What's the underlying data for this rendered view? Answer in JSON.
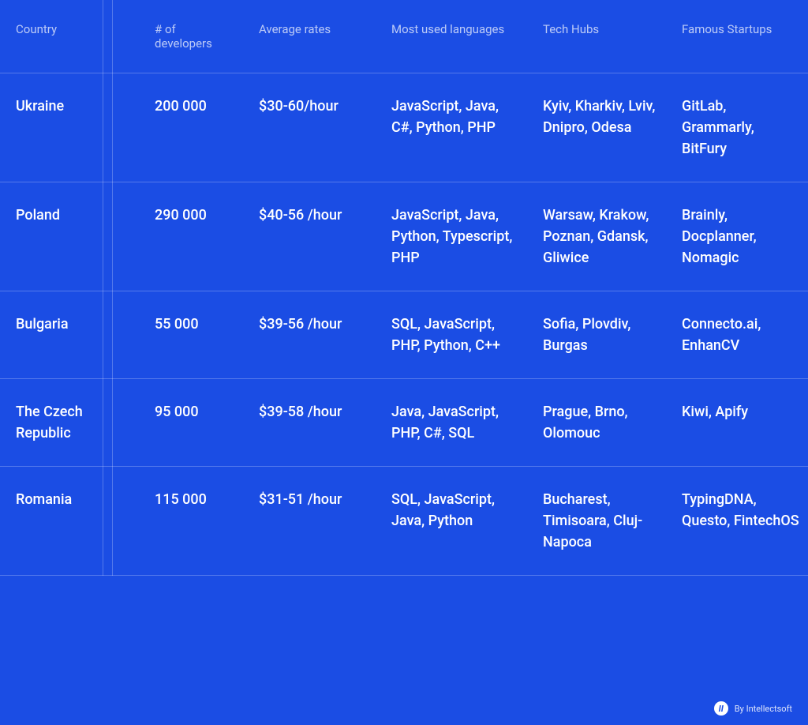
{
  "table": {
    "type": "table",
    "background_color": "#1b4de4",
    "text_color": "#ffffff",
    "border_color": "rgba(255,255,255,0.25)",
    "header_fontsize": 15,
    "data_fontsize": 18,
    "columns": [
      {
        "label": "Country",
        "width": 176
      },
      {
        "label": "# of developers",
        "width": 132
      },
      {
        "label": "Average rates",
        "width": 168
      },
      {
        "label": "Most used languages",
        "width": 192
      },
      {
        "label": "Tech Hubs",
        "width": 176
      },
      {
        "label": "Famous Startups",
        "width": 180
      }
    ],
    "rows": [
      {
        "country": "Ukraine",
        "developers": "200 000",
        "rates": "$30-60/hour",
        "languages": "JavaScript, Java, C#, Python, PHP",
        "hubs": "Kyiv, Kharkiv, Lviv, Dnipro, Odesa",
        "startups": "GitLab, Grammarly, BitFury"
      },
      {
        "country": "Poland",
        "developers": "290 000",
        "rates": "$40-56 /hour",
        "languages": "JavaScript, Java, Python, Typescript, PHP",
        "hubs": "Warsaw, Krakow, Poznan, Gdansk, Gliwice",
        "startups": "Brainly, Docplanner, Nomagic"
      },
      {
        "country": "Bulgaria",
        "developers": "55 000",
        "rates": "$39-56 /hour",
        "languages": "SQL, JavaScript, PHP, Python, C++",
        "hubs": "Sofia, Plovdiv, Burgas",
        "startups": "Connecto.ai, EnhanCV"
      },
      {
        "country": "The Czech Republic",
        "developers": "95 000",
        "rates": "$39-58 /hour",
        "languages": "Java, JavaScript, PHP, C#, SQL",
        "hubs": "Prague, Brno, Olomouc",
        "startups": "Kiwi, Apify"
      },
      {
        "country": "Romania",
        "developers": "115 000",
        "rates": "$31-51 /hour",
        "languages": "SQL, JavaScript, Java, Python",
        "hubs": "Bucharest, Timisoara, Cluj-Napoca",
        "startups": "TypingDNA, Questo, FintechOS"
      }
    ]
  },
  "footer": {
    "icon_letter": "II",
    "label": "By Intellectsoft"
  }
}
